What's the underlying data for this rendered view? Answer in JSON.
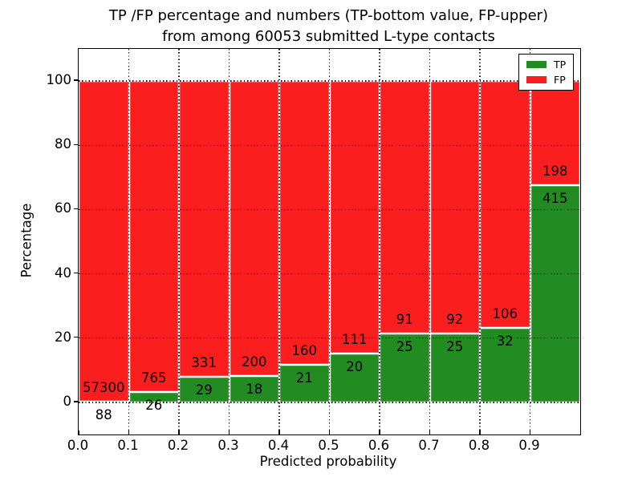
{
  "figure": {
    "title_line1": "TP /FP percentage and numbers (TP-bottom value, FP-upper)",
    "title_line2": "from among 60053 submitted L-type contacts",
    "xlabel": "Predicted probability",
    "ylabel": "Percentage",
    "background_color": "#ffffff"
  },
  "legend": {
    "items": [
      {
        "label": "TP",
        "color": "#228b22"
      },
      {
        "label": "FP",
        "color": "#fa1e1e"
      }
    ]
  },
  "chart_data": {
    "type": "bar",
    "stacked": true,
    "normalized_to_percent": true,
    "title": "TP /FP percentage and numbers (TP-bottom value, FP-upper) from among 60053 submitted L-type contacts",
    "xlabel": "Predicted probability",
    "ylabel": "Percentage",
    "total_submitted_contacts": 60053,
    "bin_width": 0.1,
    "bins": [
      0.0,
      0.1,
      0.2,
      0.3,
      0.4,
      0.5,
      0.6,
      0.7,
      0.8,
      0.9
    ],
    "xtick_labels": [
      "0.0",
      "0.1",
      "0.2",
      "0.3",
      "0.4",
      "0.5",
      "0.6",
      "0.7",
      "0.8",
      "0.9"
    ],
    "ytick_values": [
      0,
      20,
      40,
      60,
      80,
      100
    ],
    "ytick_labels": [
      "0",
      "20",
      "40",
      "60",
      "80",
      "100"
    ],
    "xlim": [
      0.0,
      1.0
    ],
    "ylim": [
      -10,
      110
    ],
    "grid": true,
    "legend_position": "upper right",
    "series": [
      {
        "name": "TP",
        "color": "#228b22",
        "values": [
          88,
          26,
          29,
          18,
          21,
          20,
          25,
          25,
          32,
          415
        ]
      },
      {
        "name": "FP",
        "color": "#fa1e1e",
        "values": [
          57300,
          765,
          331,
          200,
          160,
          111,
          91,
          92,
          106,
          198
        ]
      }
    ],
    "tp_percent": [
      0.15,
      3.29,
      8.06,
      8.26,
      11.6,
      15.27,
      21.55,
      21.37,
      23.19,
      67.7
    ]
  }
}
